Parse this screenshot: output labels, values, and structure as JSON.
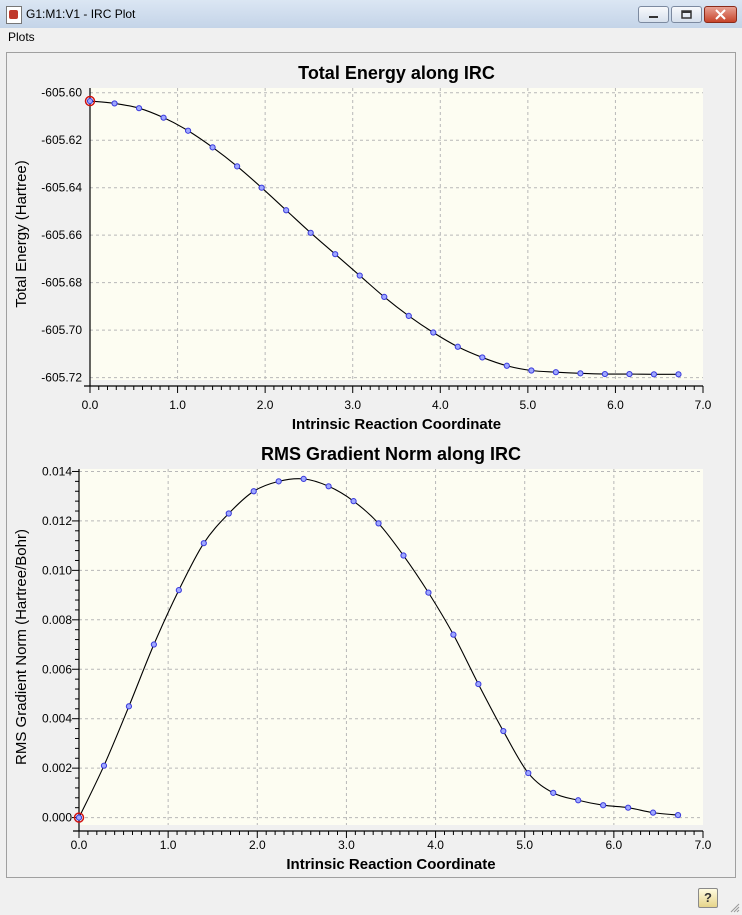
{
  "window": {
    "title": "G1:M1:V1 - IRC Plot"
  },
  "menu": {
    "items": [
      "Plots"
    ]
  },
  "colors": {
    "plot_bg": "#fdfdf2",
    "marker": "#3a3adc",
    "highlight": "#d01010",
    "line": "#000000"
  },
  "icons": {
    "app": "gaussview-icon",
    "help": "help-icon",
    "minimize": "minimize-icon",
    "maximize": "maximize-icon",
    "close": "close-icon"
  },
  "chart_data": [
    {
      "type": "line",
      "title": "Total Energy along IRC",
      "xlabel": "Intrinsic Reaction Coordinate",
      "ylabel": "Total Energy (Hartree)",
      "xlim": [
        0,
        7.0
      ],
      "ylim": [
        -605.721,
        -605.598
      ],
      "xticks": [
        "0.0",
        "1.0",
        "2.0",
        "3.0",
        "4.0",
        "5.0",
        "6.0",
        "7.0"
      ],
      "yticks": [
        {
          "v": -605.6,
          "label": "-605.60"
        },
        {
          "v": -605.62,
          "label": "-605.62"
        },
        {
          "v": -605.64,
          "label": "-605.64"
        },
        {
          "v": -605.66,
          "label": "-605.66"
        },
        {
          "v": -605.68,
          "label": "-605.68"
        },
        {
          "v": -605.7,
          "label": "-605.70"
        },
        {
          "v": -605.72,
          "label": "-605.72"
        }
      ],
      "grid": true,
      "highlight_index": 0,
      "x": [
        0.0,
        0.28,
        0.56,
        0.84,
        1.12,
        1.4,
        1.68,
        1.96,
        2.24,
        2.52,
        2.8,
        3.08,
        3.36,
        3.64,
        3.92,
        4.2,
        4.48,
        4.76,
        5.04,
        5.32,
        5.6,
        5.88,
        6.16,
        6.44,
        6.72
      ],
      "y": [
        -605.6035,
        -605.6045,
        -605.6065,
        -605.6105,
        -605.616,
        -605.623,
        -605.631,
        -605.64,
        -605.6495,
        -605.659,
        -605.668,
        -605.677,
        -605.686,
        -605.694,
        -605.701,
        -605.707,
        -605.7115,
        -605.715,
        -605.717,
        -605.7177,
        -605.7182,
        -605.7185,
        -605.7185,
        -605.7186,
        -605.7186
      ]
    },
    {
      "type": "line",
      "title": "RMS Gradient Norm along IRC",
      "xlabel": "Intrinsic Reaction Coordinate",
      "ylabel": "RMS Gradient Norm (Hartree/Bohr)",
      "xlim": [
        0,
        7.0
      ],
      "ylim": [
        -0.0003,
        0.0141
      ],
      "xticks": [
        "0.0",
        "1.0",
        "2.0",
        "3.0",
        "4.0",
        "5.0",
        "6.0",
        "7.0"
      ],
      "yticks": [
        {
          "v": 0.0,
          "label": "0.000"
        },
        {
          "v": 0.002,
          "label": "0.002"
        },
        {
          "v": 0.004,
          "label": "0.004"
        },
        {
          "v": 0.006,
          "label": "0.006"
        },
        {
          "v": 0.008,
          "label": "0.008"
        },
        {
          "v": 0.01,
          "label": "0.010"
        },
        {
          "v": 0.012,
          "label": "0.012"
        },
        {
          "v": 0.014,
          "label": "0.014"
        }
      ],
      "grid": true,
      "highlight_index": 0,
      "x": [
        0.0,
        0.28,
        0.56,
        0.84,
        1.12,
        1.4,
        1.68,
        1.96,
        2.24,
        2.52,
        2.8,
        3.08,
        3.36,
        3.64,
        3.92,
        4.2,
        4.48,
        4.76,
        5.04,
        5.32,
        5.6,
        5.88,
        6.16,
        6.44,
        6.72
      ],
      "y": [
        0.0,
        0.0021,
        0.0045,
        0.007,
        0.0092,
        0.0111,
        0.0123,
        0.0132,
        0.0136,
        0.0137,
        0.0134,
        0.0128,
        0.0119,
        0.0106,
        0.0091,
        0.0074,
        0.0054,
        0.0035,
        0.0018,
        0.001,
        0.0007,
        0.0005,
        0.0004,
        0.0002,
        0.0001
      ]
    }
  ]
}
